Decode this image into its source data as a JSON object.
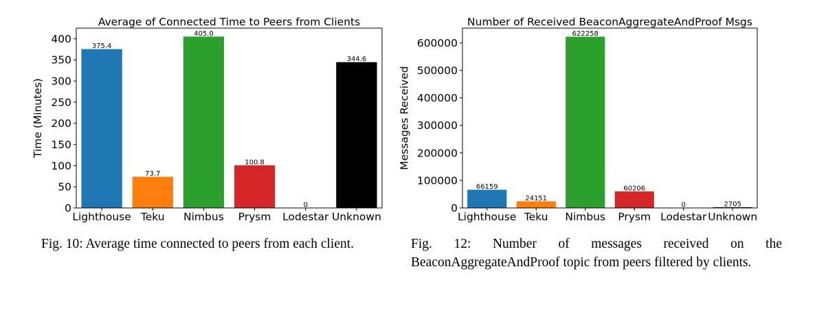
{
  "chart_data": [
    {
      "type": "bar",
      "title": "Average of Connected Time to Peers from Clients",
      "xlabel": "",
      "ylabel": "Time (Minutes)",
      "categories": [
        "Lighthouse",
        "Teku",
        "Nimbus",
        "Prysm",
        "Lodestar",
        "Unknown"
      ],
      "values": [
        375.4,
        73.7,
        405.0,
        100.8,
        0,
        344.6
      ],
      "value_labels": [
        "375.4",
        "73.7",
        "405.0",
        "100.8",
        "0",
        "344.6"
      ],
      "colors": [
        "#1f77b4",
        "#ff7f0e",
        "#2ca02c",
        "#d62728",
        "#9467bd",
        "#000000"
      ],
      "ylim": [
        0,
        425
      ],
      "yticks": [
        0,
        50,
        100,
        150,
        200,
        250,
        300,
        350,
        400
      ],
      "ytick_labels": [
        "0",
        "50",
        "100",
        "150",
        "200",
        "250",
        "300",
        "350",
        "400"
      ],
      "grid": false,
      "legend": "none"
    },
    {
      "type": "bar",
      "title": "Number of Received BeaconAggregateAndProof Msgs",
      "xlabel": "",
      "ylabel": "Messages Received",
      "categories": [
        "Lighthouse",
        "Teku",
        "Nimbus",
        "Prysm",
        "Lodestar",
        "Unknown"
      ],
      "values": [
        66159,
        24151,
        622258,
        60206,
        0,
        2705
      ],
      "value_labels": [
        "66159",
        "24151",
        "622258",
        "60206",
        "0",
        "2705"
      ],
      "colors": [
        "#1f77b4",
        "#ff7f0e",
        "#2ca02c",
        "#d62728",
        "#9467bd",
        "#000000"
      ],
      "ylim": [
        0,
        653371
      ],
      "yticks": [
        0,
        100000,
        200000,
        300000,
        400000,
        500000,
        600000
      ],
      "ytick_labels": [
        "0",
        "100000",
        "200000",
        "300000",
        "400000",
        "500000",
        "600000"
      ],
      "grid": false,
      "legend": "none"
    }
  ],
  "captions": {
    "fig10": "Fig. 10: Average time connected to peers from each client.",
    "fig12": "Fig. 12: Number of messages received on the BeaconAggregateAndProof topic from peers filtered by clients."
  }
}
